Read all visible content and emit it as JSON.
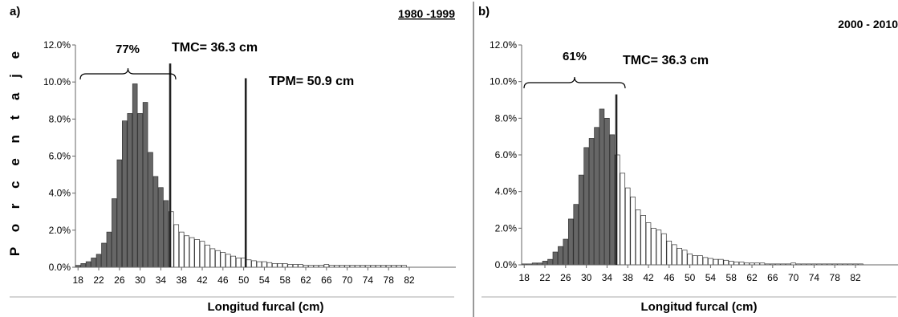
{
  "chart_data": [
    {
      "type": "bar",
      "panel_label": "a)",
      "period": "1980 -1999",
      "xlabel": "Longitud furcal (cm)",
      "ylabel": "P o r c e n t a j e",
      "ylim": [
        0,
        12
      ],
      "y_ticks": [
        "0.0%",
        "2.0%",
        "4.0%",
        "6.0%",
        "8.0%",
        "10.0%",
        "12.0%"
      ],
      "x_ticks": [
        "18",
        "22",
        "26",
        "30",
        "34",
        "38",
        "42",
        "46",
        "50",
        "54",
        "58",
        "62",
        "66",
        "70",
        "74",
        "78",
        "82"
      ],
      "x_start": 18,
      "highlight_below": 36,
      "highlight_color": "#666666",
      "values": [
        0.1,
        0.2,
        0.3,
        0.5,
        0.7,
        1.3,
        1.9,
        3.7,
        5.8,
        7.9,
        8.3,
        9.9,
        8.3,
        8.9,
        6.2,
        4.9,
        4.3,
        3.6,
        3.0,
        2.3,
        1.9,
        1.7,
        1.6,
        1.5,
        1.4,
        1.2,
        1.0,
        0.9,
        0.8,
        0.7,
        0.6,
        0.5,
        0.5,
        0.4,
        0.35,
        0.3,
        0.3,
        0.25,
        0.2,
        0.2,
        0.2,
        0.15,
        0.15,
        0.15,
        0.1,
        0.1,
        0.1,
        0.1,
        0.15,
        0.1,
        0.1,
        0.1,
        0.1,
        0.1,
        0.1,
        0.1,
        0.1,
        0.1,
        0.1,
        0.1,
        0.1,
        0.1,
        0.1,
        0.1
      ],
      "brace_label": "77%",
      "vlines": [
        {
          "x": 36.3,
          "top": 11.0,
          "label": "TMC= 36.3 cm"
        },
        {
          "x": 50.9,
          "top": 10.2,
          "label": "TPM= 50.9 cm"
        }
      ]
    },
    {
      "type": "bar",
      "panel_label": "b)",
      "period": "2000 - 2010",
      "xlabel": "Longitud furcal (cm)",
      "ylim": [
        0,
        12
      ],
      "y_ticks": [
        "0.0%",
        "2.0%",
        "4.0%",
        "6.0%",
        "8.0%",
        "10.0%",
        "12.0%"
      ],
      "x_ticks": [
        "18",
        "22",
        "26",
        "30",
        "34",
        "38",
        "42",
        "46",
        "50",
        "54",
        "58",
        "62",
        "66",
        "70",
        "74",
        "78",
        "82"
      ],
      "x_start": 18,
      "highlight_below": 36,
      "highlight_color": "#666666",
      "values": [
        0.05,
        0.05,
        0.1,
        0.1,
        0.2,
        0.3,
        0.7,
        1.0,
        1.4,
        2.5,
        3.3,
        4.9,
        6.4,
        6.9,
        7.5,
        8.5,
        8.0,
        7.1,
        6.0,
        5.0,
        4.2,
        3.7,
        3.0,
        2.7,
        2.3,
        2.0,
        1.9,
        1.7,
        1.3,
        1.1,
        0.9,
        0.8,
        0.6,
        0.5,
        0.5,
        0.4,
        0.35,
        0.3,
        0.3,
        0.25,
        0.2,
        0.15,
        0.15,
        0.1,
        0.1,
        0.1,
        0.1,
        0.05,
        0.05,
        0.05,
        0.05,
        0.05,
        0.1,
        0.05,
        0.05,
        0.05,
        0.05,
        0.05,
        0.05,
        0.05,
        0.05,
        0.05,
        0.05,
        0.05,
        0.05,
        0.05
      ],
      "brace_label": "61%",
      "vlines": [
        {
          "x": 36.3,
          "top": 9.3,
          "label": "TMC= 36.3 cm"
        }
      ]
    }
  ]
}
